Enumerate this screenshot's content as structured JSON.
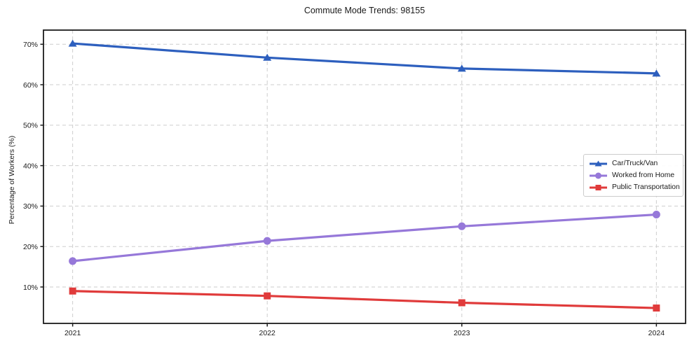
{
  "chart_data": {
    "type": "line",
    "title": "Commute Mode Trends: 98155",
    "xlabel": "",
    "ylabel": "Percentage of Workers (%)",
    "categories": [
      "2021",
      "2022",
      "2023",
      "2024"
    ],
    "x": [
      2021,
      2022,
      2023,
      2024
    ],
    "series": [
      {
        "name": "Car/Truck/Van",
        "color": "#2d5fbe",
        "marker": "triangle",
        "values": [
          70.2,
          66.7,
          64.0,
          62.8
        ]
      },
      {
        "name": "Worked from Home",
        "color": "#9678d9",
        "marker": "circle",
        "values": [
          16.4,
          21.4,
          25.0,
          27.9
        ]
      },
      {
        "name": "Public Transportation",
        "color": "#e03b3b",
        "marker": "square",
        "values": [
          9.0,
          7.8,
          6.1,
          4.8
        ]
      }
    ],
    "ytick_labels": [
      "10%",
      "20%",
      "30%",
      "40%",
      "50%",
      "60%",
      "70%"
    ],
    "ytick_values": [
      10,
      20,
      30,
      40,
      50,
      60,
      70
    ],
    "ylim": [
      1.0,
      73.5
    ],
    "xlim": [
      2020.85,
      2024.15
    ],
    "grid": "dashed both",
    "legend_position": "center right",
    "colors": {
      "spine": "#1c1c1c",
      "gridline": "#cdcdcd",
      "text": "#1a1a1a",
      "background": "#ffffff"
    }
  }
}
